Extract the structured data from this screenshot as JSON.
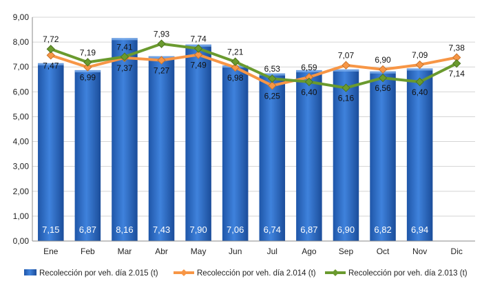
{
  "chart_data": {
    "type": "bar",
    "categories": [
      "Ene",
      "Feb",
      "Mar",
      "Abr",
      "May",
      "Jun",
      "Jul",
      "Ago",
      "Sep",
      "Oct",
      "Nov",
      "Dic"
    ],
    "ylim": [
      0,
      9
    ],
    "yticks": [
      "0,00",
      "1,00",
      "2,00",
      "3,00",
      "4,00",
      "5,00",
      "6,00",
      "7,00",
      "8,00",
      "9,00"
    ],
    "grid": true,
    "legend_position": "bottom",
    "series": [
      {
        "name": "Recolección por veh. día 2.015 (t)",
        "type": "bar",
        "color": "#2f6fc9",
        "values": [
          7.15,
          6.87,
          8.16,
          7.43,
          7.9,
          7.06,
          6.74,
          6.87,
          6.9,
          6.82,
          6.94,
          null
        ],
        "labels": [
          "7,15",
          "6,87",
          "8,16",
          "7,43",
          "7,90",
          "7,06",
          "6,74",
          "6,87",
          "6,90",
          "6,82",
          "6,94",
          ""
        ]
      },
      {
        "name": "Recolección por veh. día 2.014 (t)",
        "type": "line",
        "color": "#f79646",
        "values": [
          7.47,
          6.99,
          7.37,
          7.27,
          7.49,
          6.98,
          6.25,
          6.59,
          7.07,
          6.9,
          7.09,
          7.38
        ],
        "labels": [
          "7,47",
          "6,99",
          "7,37",
          "7,27",
          "7,49",
          "6,98",
          "6,25",
          "6,59",
          "7,07",
          "6,90",
          "7,09",
          "7,38"
        ]
      },
      {
        "name": "Recolección por veh. día 2.013 (t)",
        "type": "line",
        "color": "#6a9a2e",
        "values": [
          7.72,
          7.19,
          7.41,
          7.93,
          7.74,
          7.21,
          6.53,
          6.4,
          6.16,
          6.56,
          6.4,
          7.14
        ],
        "labels": [
          "7,72",
          "7,19",
          "7,41",
          "7,93",
          "7,74",
          "7,21",
          "6,53",
          "6,40",
          "6,16",
          "6,56",
          "6,40",
          "7,14"
        ]
      }
    ]
  }
}
